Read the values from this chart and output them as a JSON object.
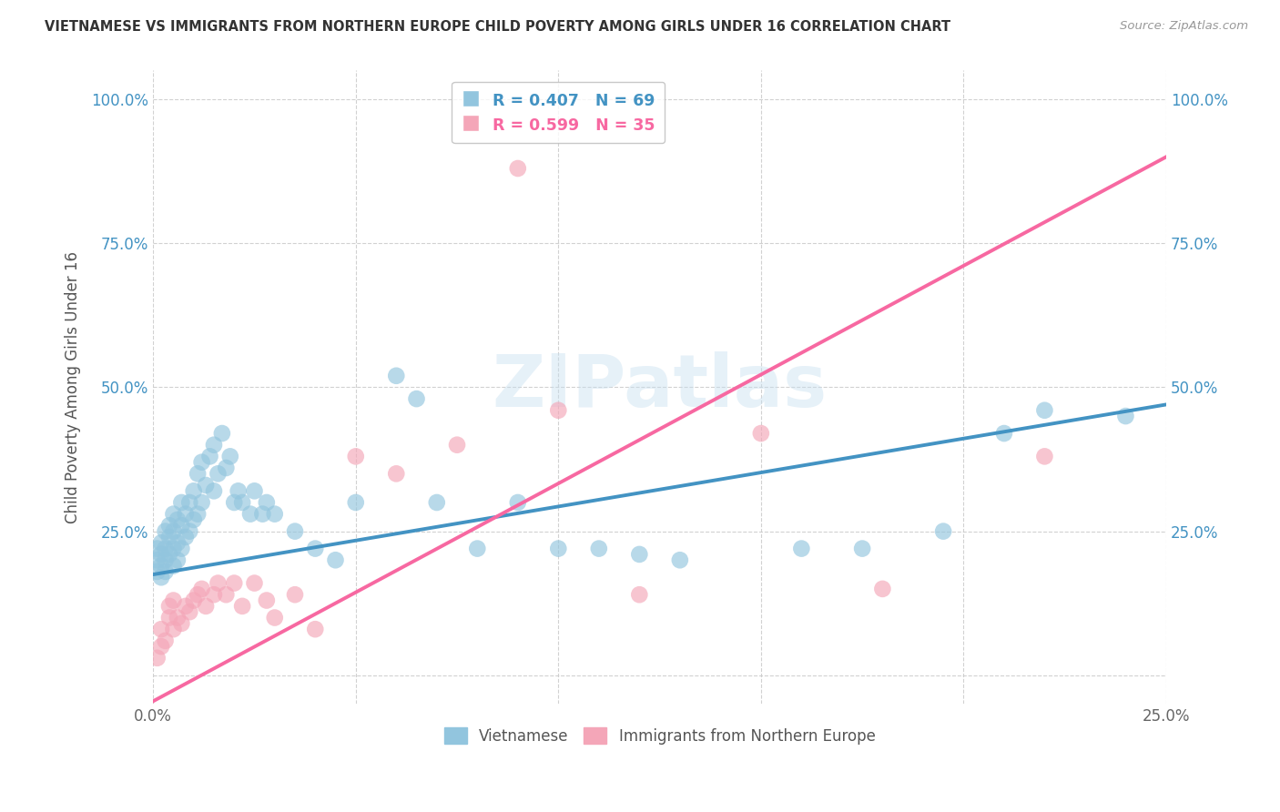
{
  "title": "VIETNAMESE VS IMMIGRANTS FROM NORTHERN EUROPE CHILD POVERTY AMONG GIRLS UNDER 16 CORRELATION CHART",
  "source": "Source: ZipAtlas.com",
  "ylabel_label": "Child Poverty Among Girls Under 16",
  "xmin": 0.0,
  "xmax": 0.25,
  "ymin": -0.05,
  "ymax": 1.05,
  "xticks": [
    0.0,
    0.05,
    0.1,
    0.15,
    0.2,
    0.25
  ],
  "xtick_labels": [
    "0.0%",
    "",
    "",
    "",
    "",
    "25.0%"
  ],
  "yticks": [
    0.0,
    0.25,
    0.5,
    0.75,
    1.0
  ],
  "ytick_labels_left": [
    "",
    "25.0%",
    "50.0%",
    "75.0%",
    "100.0%"
  ],
  "ytick_labels_right": [
    "",
    "25.0%",
    "50.0%",
    "75.0%",
    "100.0%"
  ],
  "blue_color": "#92c5de",
  "pink_color": "#f4a6b8",
  "blue_line_color": "#4393c3",
  "pink_line_color": "#f768a1",
  "blue_R": 0.407,
  "blue_N": 69,
  "pink_R": 0.599,
  "pink_N": 35,
  "legend_label_blue": "Vietnamese",
  "legend_label_pink": "Immigrants from Northern Europe",
  "watermark": "ZIPatlas",
  "blue_scatter_x": [
    0.001,
    0.001,
    0.001,
    0.002,
    0.002,
    0.002,
    0.002,
    0.003,
    0.003,
    0.003,
    0.003,
    0.004,
    0.004,
    0.004,
    0.005,
    0.005,
    0.005,
    0.005,
    0.006,
    0.006,
    0.006,
    0.007,
    0.007,
    0.007,
    0.008,
    0.008,
    0.009,
    0.009,
    0.01,
    0.01,
    0.011,
    0.011,
    0.012,
    0.012,
    0.013,
    0.014,
    0.015,
    0.015,
    0.016,
    0.017,
    0.018,
    0.019,
    0.02,
    0.021,
    0.022,
    0.024,
    0.025,
    0.027,
    0.028,
    0.03,
    0.035,
    0.04,
    0.045,
    0.05,
    0.06,
    0.065,
    0.07,
    0.08,
    0.09,
    0.1,
    0.11,
    0.12,
    0.13,
    0.16,
    0.175,
    0.195,
    0.21,
    0.22,
    0.24
  ],
  "blue_scatter_y": [
    0.18,
    0.2,
    0.22,
    0.17,
    0.19,
    0.21,
    0.23,
    0.18,
    0.22,
    0.25,
    0.2,
    0.21,
    0.24,
    0.26,
    0.19,
    0.22,
    0.25,
    0.28,
    0.2,
    0.23,
    0.27,
    0.22,
    0.26,
    0.3,
    0.24,
    0.28,
    0.25,
    0.3,
    0.27,
    0.32,
    0.28,
    0.35,
    0.3,
    0.37,
    0.33,
    0.38,
    0.32,
    0.4,
    0.35,
    0.42,
    0.36,
    0.38,
    0.3,
    0.32,
    0.3,
    0.28,
    0.32,
    0.28,
    0.3,
    0.28,
    0.25,
    0.22,
    0.2,
    0.3,
    0.52,
    0.48,
    0.3,
    0.22,
    0.3,
    0.22,
    0.22,
    0.21,
    0.2,
    0.22,
    0.22,
    0.25,
    0.42,
    0.46,
    0.45
  ],
  "pink_scatter_x": [
    0.001,
    0.002,
    0.002,
    0.003,
    0.004,
    0.004,
    0.005,
    0.005,
    0.006,
    0.007,
    0.008,
    0.009,
    0.01,
    0.011,
    0.012,
    0.013,
    0.015,
    0.016,
    0.018,
    0.02,
    0.022,
    0.025,
    0.028,
    0.03,
    0.035,
    0.04,
    0.05,
    0.06,
    0.075,
    0.09,
    0.1,
    0.12,
    0.15,
    0.18,
    0.22
  ],
  "pink_scatter_y": [
    0.03,
    0.05,
    0.08,
    0.06,
    0.1,
    0.12,
    0.08,
    0.13,
    0.1,
    0.09,
    0.12,
    0.11,
    0.13,
    0.14,
    0.15,
    0.12,
    0.14,
    0.16,
    0.14,
    0.16,
    0.12,
    0.16,
    0.13,
    0.1,
    0.14,
    0.08,
    0.38,
    0.35,
    0.4,
    0.88,
    0.46,
    0.14,
    0.42,
    0.15,
    0.38
  ]
}
